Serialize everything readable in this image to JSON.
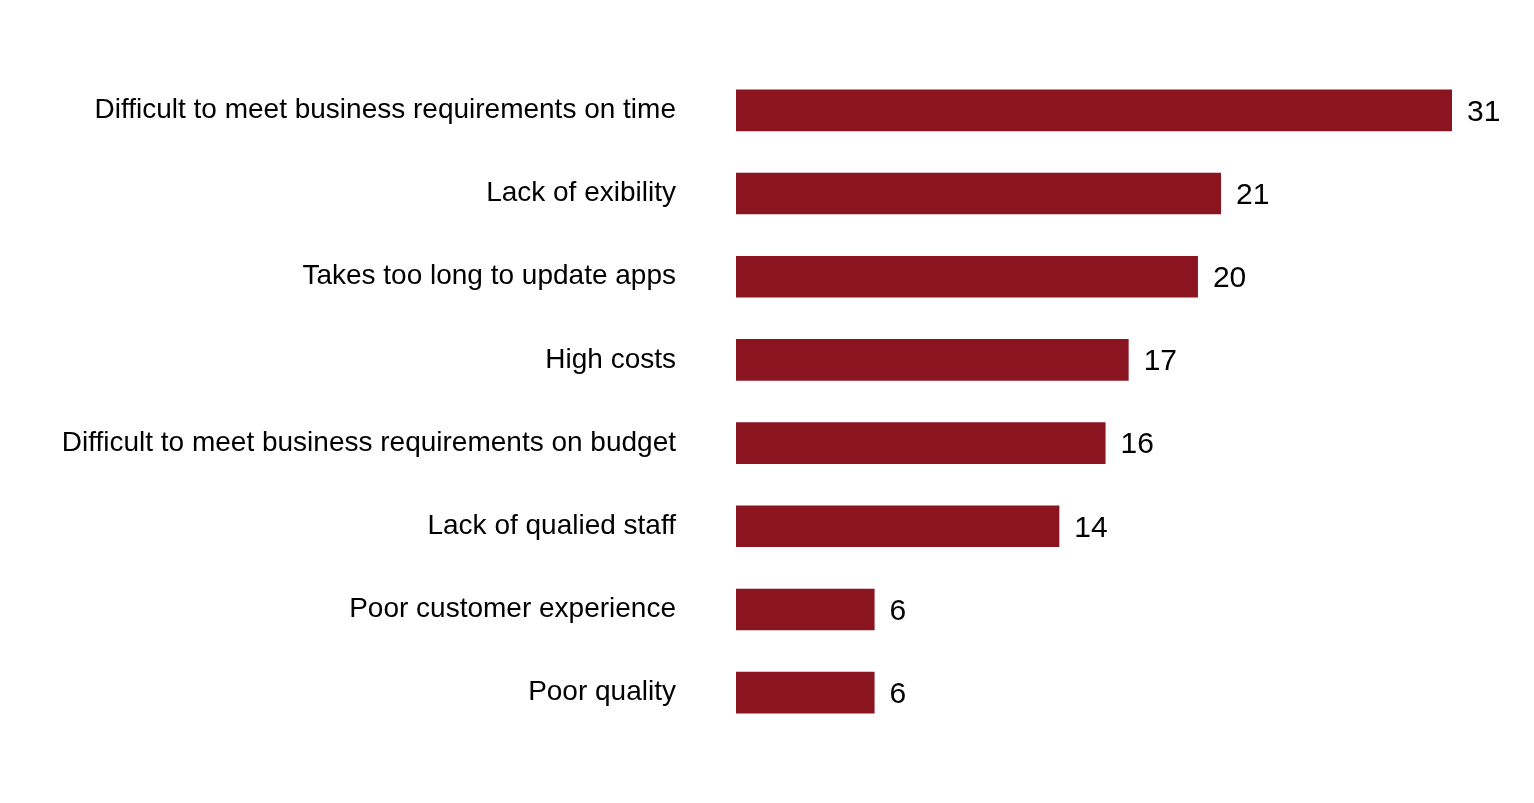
{
  "chart_data": {
    "type": "bar",
    "orientation": "horizontal",
    "categories": [
      "Difficult to meet business requirements on time",
      "Lack of exibility",
      "Takes too long to update apps",
      "High costs",
      "Difficult to meet business requirements on budget",
      "Lack of qualied staff",
      "Poor customer experience",
      "Poor quality"
    ],
    "values": [
      31,
      21,
      20,
      17,
      16,
      14,
      6,
      6
    ],
    "color": "#8a1520",
    "data_labels": true,
    "legend": false
  }
}
